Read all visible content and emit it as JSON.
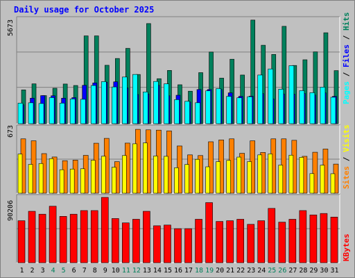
{
  "chart_data": [
    {
      "type": "bar",
      "title": "Daily usage for October 2025",
      "categories": [
        "1",
        "2",
        "3",
        "4",
        "5",
        "6",
        "7",
        "8",
        "9",
        "10",
        "11",
        "12",
        "13",
        "14",
        "15",
        "16",
        "17",
        "18",
        "19",
        "20",
        "21",
        "22",
        "23",
        "24",
        "25",
        "26",
        "27",
        "28",
        "29",
        "30",
        "31"
      ],
      "weekend_days": [
        "4",
        "5",
        "11",
        "12",
        "18",
        "19",
        "25",
        "26"
      ],
      "ymax_label": "5673",
      "ymax": 5673,
      "series": [
        {
          "name": "Hits",
          "color": "#00805c",
          "values": [
            1840,
            2170,
            1530,
            1930,
            2160,
            2080,
            4780,
            4780,
            3180,
            3550,
            4100,
            2680,
            5450,
            2450,
            2900,
            2120,
            1770,
            2780,
            3900,
            2480,
            3510,
            2650,
            5640,
            4270,
            3770,
            5300,
            3170,
            3480,
            3910,
            4950,
            2890
          ]
        },
        {
          "name": "Files",
          "color": "#0000ff",
          "values": [
            1030,
            1390,
            1530,
            1520,
            1390,
            1420,
            2090,
            2220,
            2260,
            2280,
            1950,
            1590,
            1620,
            2090,
            1520,
            1550,
            1180,
            1860,
            1860,
            1860,
            1680,
            1490,
            1500,
            1640,
            1350,
            1620,
            1610,
            1650,
            1560,
            1680,
            1490
          ]
        },
        {
          "name": "Pages",
          "color": "#00ffff",
          "values": [
            1120,
            1140,
            1100,
            1420,
            1120,
            1350,
            1330,
            2080,
            2290,
            2000,
            2540,
            2680,
            1730,
            2300,
            2170,
            1310,
            1220,
            1140,
            1790,
            1910,
            1490,
            1410,
            1470,
            2650,
            2980,
            1880,
            3160,
            1800,
            1690,
            1990,
            1440
          ]
        },
        {
          "name": "Visits",
          "color": "#ffff00",
          "values": [
            403,
            297,
            306,
            356,
            242,
            249,
            252,
            340,
            381,
            268,
            388,
            509,
            518,
            383,
            380,
            262,
            296,
            349,
            272,
            325,
            338,
            372,
            326,
            395,
            405,
            290,
            392,
            370,
            202,
            289,
            201
          ]
        },
        {
          "name": "Sites",
          "color": "#ff8000",
          "values": [
            560,
            540,
            408,
            373,
            335,
            341,
            390,
            515,
            565,
            325,
            516,
            658,
            653,
            650,
            642,
            487,
            395,
            388,
            530,
            549,
            560,
            411,
            540,
            420,
            560,
            560,
            545,
            380,
            422,
            455,
            300
          ]
        },
        {
          "name": "KBytes",
          "color": "#ff0000",
          "values": [
            58000,
            71000,
            67000,
            78000,
            64000,
            67000,
            72000,
            72000,
            90206,
            61000,
            55000,
            60000,
            71000,
            51000,
            52000,
            47000,
            47000,
            60000,
            83000,
            57000,
            58000,
            60000,
            53000,
            58000,
            75000,
            56000,
            60000,
            72000,
            66000,
            68000,
            63000
          ]
        }
      ],
      "axis_labels": {
        "top_panel": [
          "Hits",
          "Files",
          "Pages"
        ],
        "mid_panel": [
          "Visits",
          "Sites"
        ],
        "bottom_panel": [
          "KBytes"
        ],
        "mid_max": "673",
        "bottom_max": "90206",
        "top_max": "5673"
      },
      "grid": true,
      "panel_background": "#c0c0c0"
    }
  ]
}
